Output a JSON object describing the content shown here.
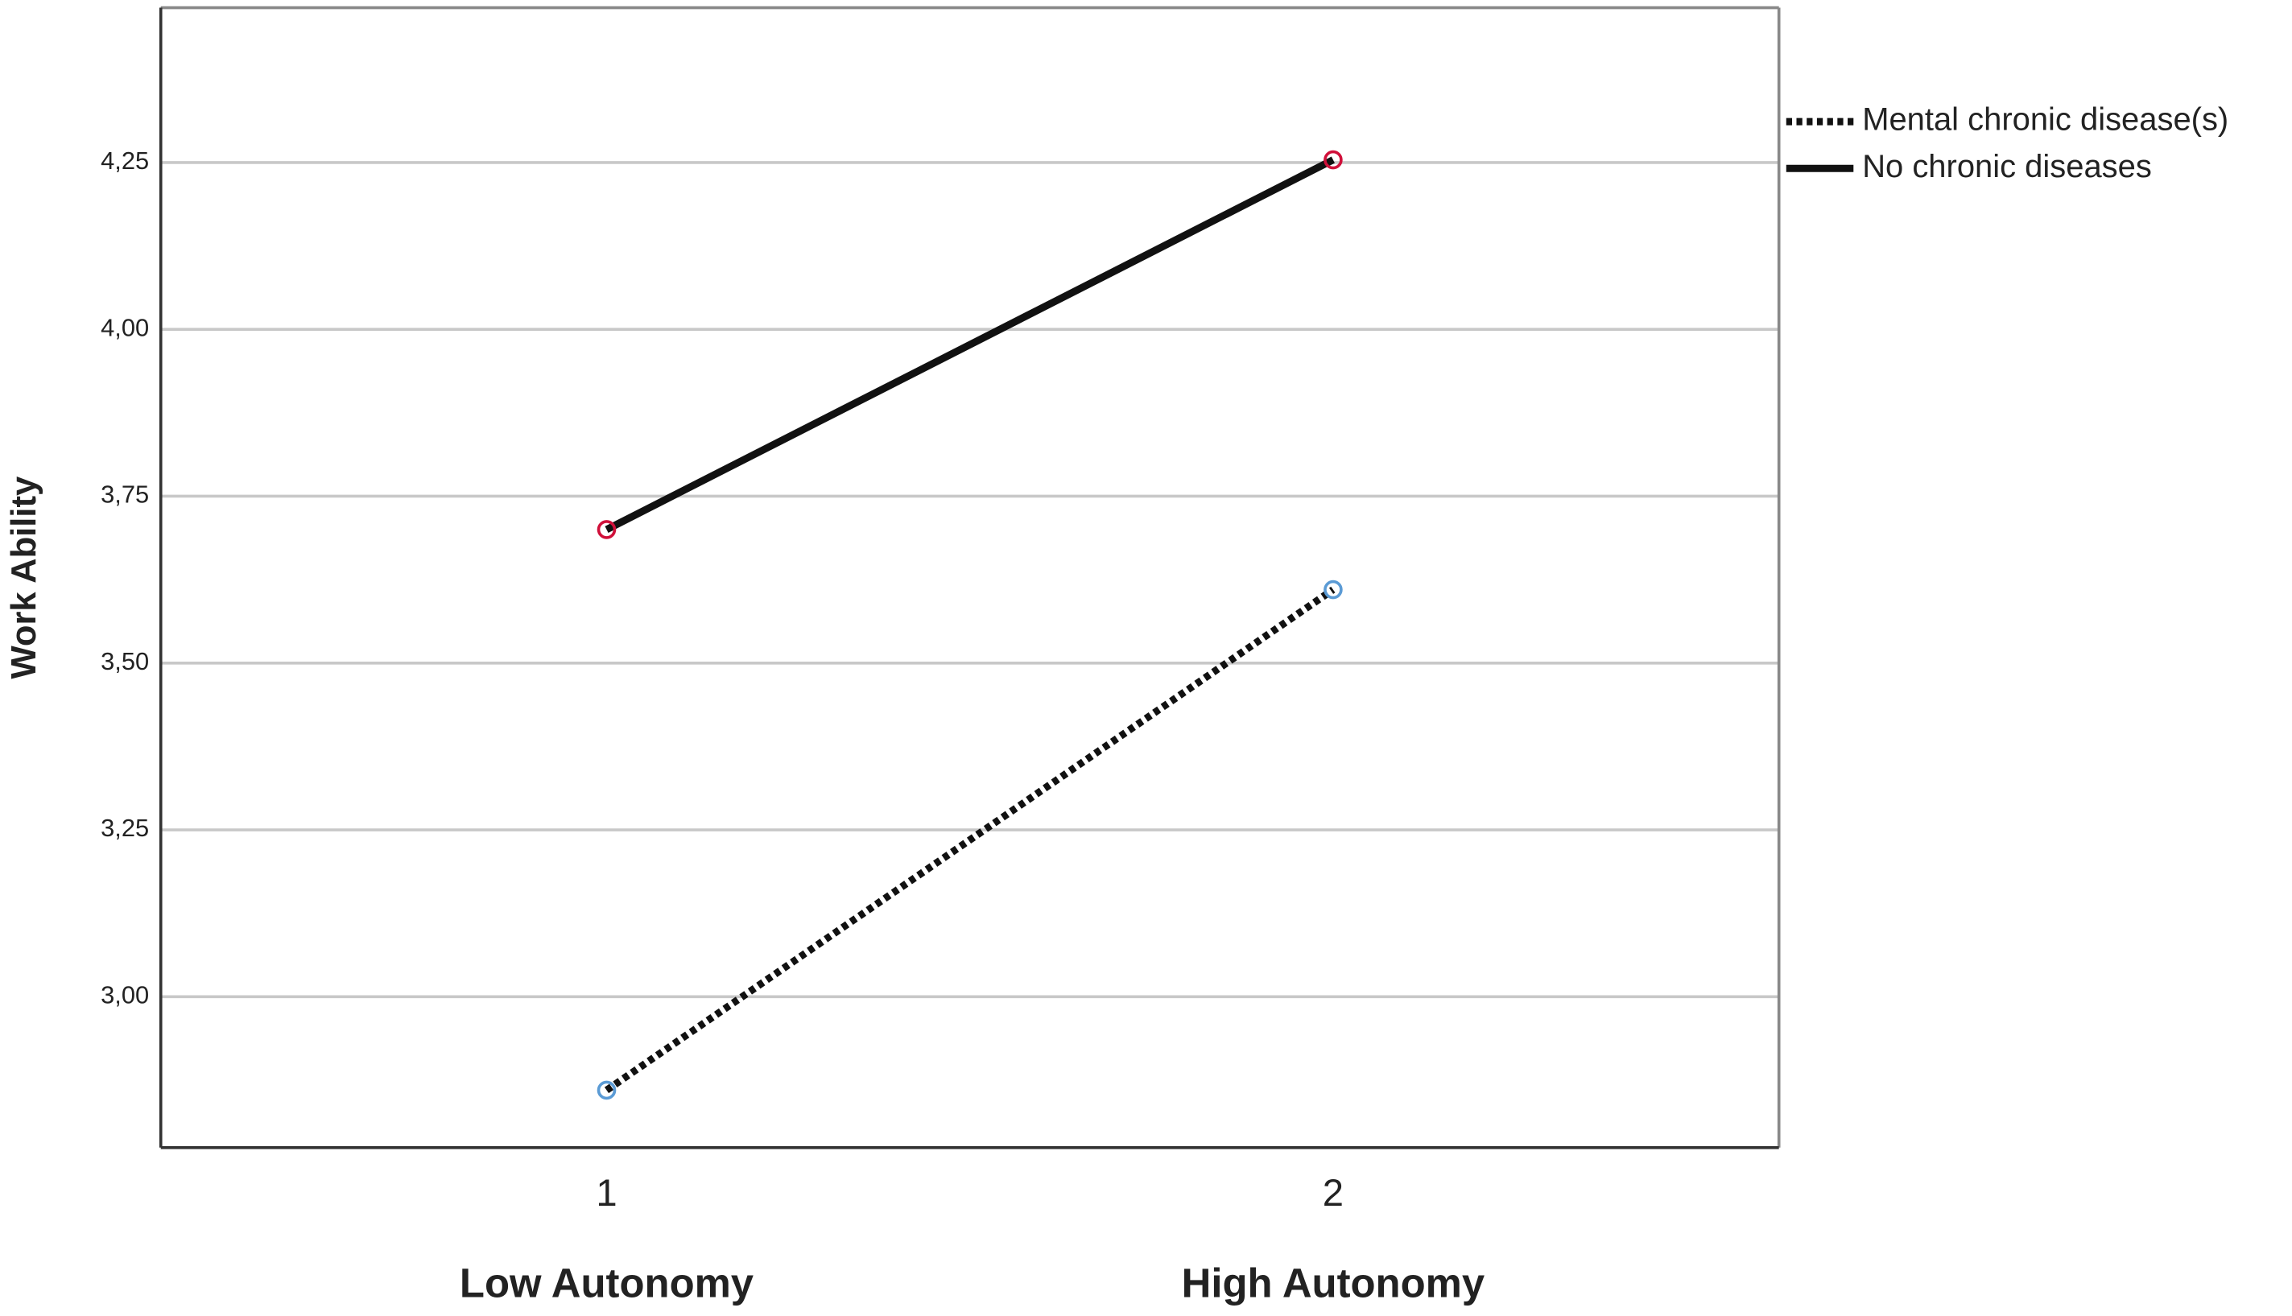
{
  "chart_data": {
    "type": "line",
    "y_label": "Work Ability",
    "categories": [
      "1",
      "2"
    ],
    "category_labels": [
      "Low Autonomy",
      "High Autonomy"
    ],
    "series": [
      {
        "name": "Mental chronic disease(s)",
        "color": "#111111",
        "dash": true,
        "marker_color": "#5b9bd5",
        "values": [
          2.86,
          3.61
        ]
      },
      {
        "name": "No chronic diseases",
        "color": "#111111",
        "dash": false,
        "marker_color": "#d0103a",
        "values": [
          3.7,
          4.254
        ]
      }
    ],
    "ylim": [
      2.774,
      4.482
    ],
    "yticks": [
      {
        "value": 3,
        "label": "3,00"
      },
      {
        "value": 3.25,
        "label": "3,25"
      },
      {
        "value": 3.5,
        "label": "3,50"
      },
      {
        "value": 3.75,
        "label": "3,75"
      },
      {
        "value": 4,
        "label": "4,00"
      },
      {
        "value": 4.25,
        "label": "4,25"
      }
    ],
    "grid": true,
    "legend": "right"
  }
}
